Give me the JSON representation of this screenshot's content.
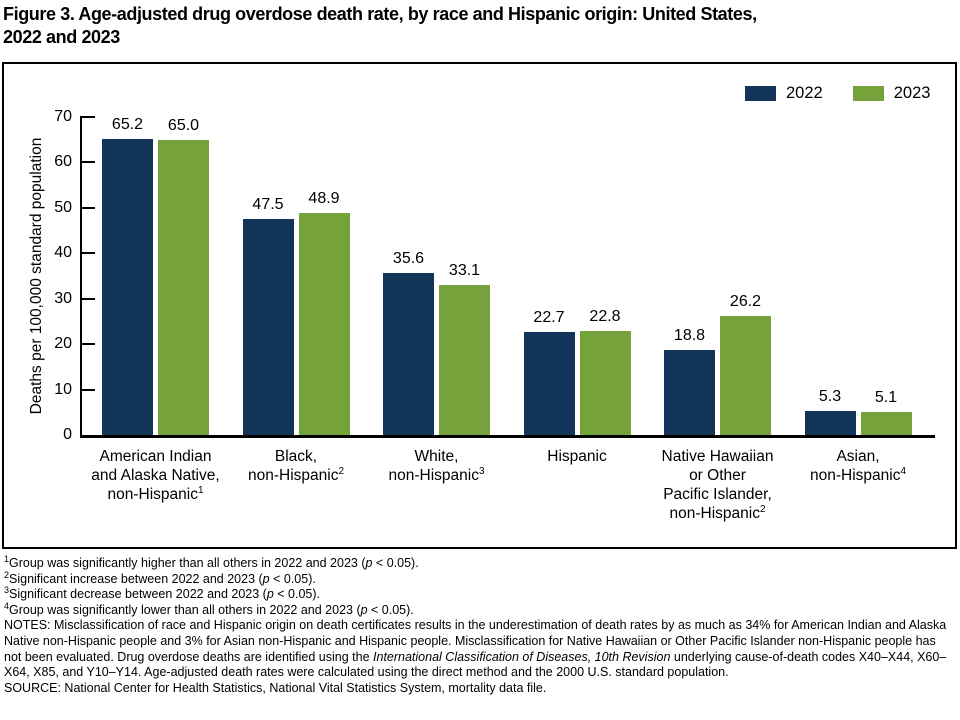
{
  "title": {
    "line1": "Figure 3. Age-adjusted drug overdose death rate, by race and Hispanic origin: United States,",
    "line2": "2022 and 2023"
  },
  "colors": {
    "series_2022": "#123458",
    "series_2023": "#76A23C",
    "axis": "#000000"
  },
  "chart_data": {
    "type": "bar",
    "title": "Age-adjusted drug overdose death rate, by race and Hispanic origin: United States, 2022 and 2023",
    "xlabel": "",
    "ylabel": "Deaths per 100,000 standard population",
    "ylim": [
      0,
      70
    ],
    "yticks": [
      0,
      10,
      20,
      30,
      40,
      50,
      60,
      70
    ],
    "grid": false,
    "legend_position": "top-right",
    "categories": [
      {
        "lines": [
          "American Indian",
          "and Alaska Native,",
          "non-Hispanic"
        ],
        "sup": "1"
      },
      {
        "lines": [
          "Black,",
          "non-Hispanic"
        ],
        "sup": "2"
      },
      {
        "lines": [
          "White,",
          "non-Hispanic"
        ],
        "sup": "3"
      },
      {
        "lines": [
          "Hispanic"
        ],
        "sup": null
      },
      {
        "lines": [
          "Native Hawaiian",
          "or Other",
          "Pacific Islander,",
          "non-Hispanic"
        ],
        "sup": "2"
      },
      {
        "lines": [
          "Asian,",
          "non-Hispanic"
        ],
        "sup": "4"
      }
    ],
    "series": [
      {
        "name": "2022",
        "color": "#123458",
        "values": [
          65.2,
          47.5,
          35.6,
          22.7,
          18.8,
          5.3
        ]
      },
      {
        "name": "2023",
        "color": "#76A23C",
        "values": [
          65.0,
          48.9,
          33.1,
          22.8,
          26.2,
          5.1
        ]
      }
    ]
  },
  "legend": [
    {
      "label": "2022",
      "color": "#123458"
    },
    {
      "label": "2023",
      "color": "#76A23C"
    }
  ],
  "footnotes": [
    {
      "sup": "1",
      "segments": [
        {
          "text": "Group was significantly higher than all others in 2022 and 2023 (",
          "italic": false
        },
        {
          "text": "p",
          "italic": true
        },
        {
          "text": " < 0.05).",
          "italic": false
        }
      ]
    },
    {
      "sup": "2",
      "segments": [
        {
          "text": "Significant increase between 2022 and 2023 (",
          "italic": false
        },
        {
          "text": "p",
          "italic": true
        },
        {
          "text": " < 0.05).",
          "italic": false
        }
      ]
    },
    {
      "sup": "3",
      "segments": [
        {
          "text": "Significant decrease between 2022 and 2023 (",
          "italic": false
        },
        {
          "text": "p",
          "italic": true
        },
        {
          "text": " < 0.05).",
          "italic": false
        }
      ]
    },
    {
      "sup": "4",
      "segments": [
        {
          "text": "Group was significantly lower than all others in 2022 and 2023 (",
          "italic": false
        },
        {
          "text": "p",
          "italic": true
        },
        {
          "text": " < 0.05).",
          "italic": false
        }
      ]
    }
  ],
  "notes": {
    "segments": [
      {
        "text": "NOTES: Misclassification of race and Hispanic origin on death certificates results in the underestimation of death rates by as much as 34% for American Indian and Alaska Native non-Hispanic people and 3% for Asian non-Hispanic and Hispanic people. Misclassification for Native Hawaiian or Other Pacific Islander non-Hispanic people has not been evaluated. Drug overdose deaths are identified using the ",
        "italic": false
      },
      {
        "text": "International Classification of Diseases, 10th Revision",
        "italic": true
      },
      {
        "text": " underlying cause-of-death codes X40–X44, X60–X64, X85, and Y10–Y14. Age-adjusted death rates were calculated using the direct method and the 2000 U.S. standard population.",
        "italic": false
      }
    ]
  },
  "source": "SOURCE: National Center for Health Statistics, National Vital Statistics System, mortality data file."
}
